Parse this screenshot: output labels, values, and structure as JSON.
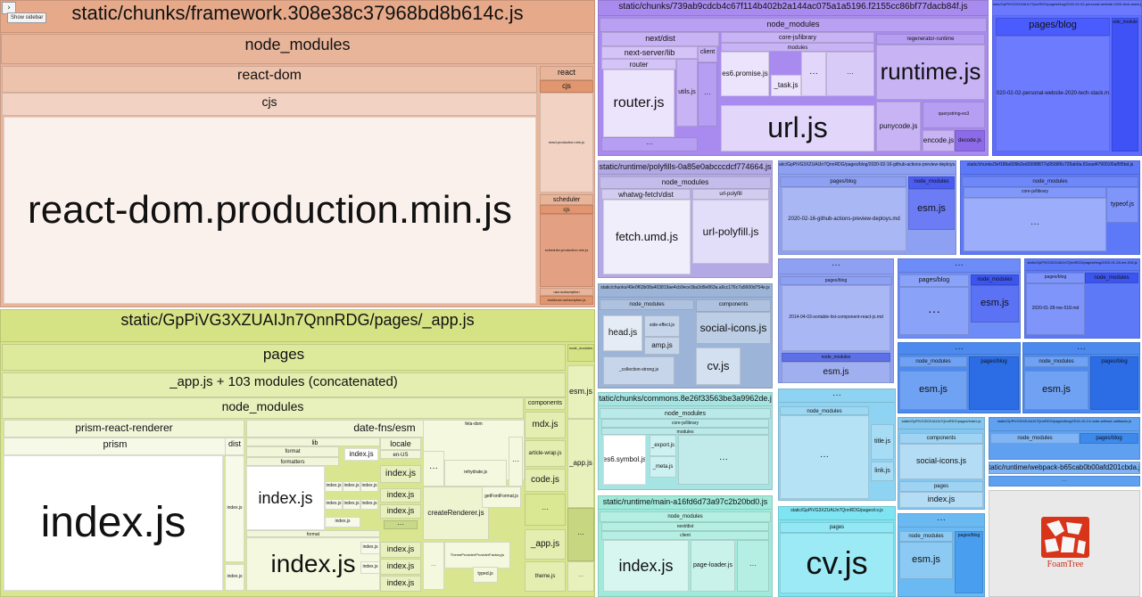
{
  "controls": {
    "toggle_icon": "›",
    "show_sidebar_label": "Show sidebar"
  },
  "logo": {
    "name": "FoamTree",
    "color": "#d8341a"
  },
  "groups": {
    "framework": {
      "title": "static/chunks/framework.308e38c37968bd8b614c.js",
      "node_modules": "node_modules",
      "react_dom": "react-dom",
      "cjs": "cjs",
      "react_dom_min": "react-dom.production.min.js",
      "react": "react",
      "react_cjs": "cjs",
      "react_min": "react.production.min.js",
      "scheduler": "scheduler",
      "scheduler_cjs": "cjs",
      "scheduler_min": "scheduler.production.min.js",
      "use_sub": "use-subscription",
      "build": "build/use-subscription.js"
    },
    "app": {
      "title": "static/GpPiVG3XZUAIJn7QnnRDG/pages/_app.js",
      "pages": "pages",
      "concat": "_app.js + 103 modules (concatenated)",
      "node_modules": "node_modules",
      "prism_react_renderer": "prism-react-renderer",
      "prism": "prism",
      "index_big": "index.js",
      "dist": "dist",
      "dist_index1": "index.js",
      "dist_index2": "index.js",
      "date_fns": "date-fns/esm",
      "lib": "_lib",
      "format": "format",
      "formatters": "formatters",
      "format_index": "index.js",
      "format2": "format",
      "index_large": "index.js",
      "index_small": "index.js",
      "locale": "locale",
      "en_us": "en-US",
      "locale_index": "index.js",
      "small_index": "index.js",
      "create_renderer": "createRenderer.js",
      "rehydrate": "rehydrate.js",
      "get_font_format": "getFontFormat.js",
      "theme_provider": "ThemeProvider/ProviderFactory.js",
      "typed": "typed.js",
      "components": "components",
      "mdx": "mdx.js",
      "article_wrap": "article-wrap.js",
      "code": "code.js",
      "app_js": "_app.js",
      "theme": "theme.js",
      "esm": "esm.js",
      "app_js2": "_app.js",
      "node_modules2": "node_modules",
      "font_blocks": "fela-dom",
      "ellipsis": "···"
    },
    "chunk739": {
      "title": "static/chunks/739ab9cdcb4c67f114b402b2a144ac075a1a5196.f2155cc86bf77dacb84f.js",
      "node_modules": "node_modules",
      "next_dist": "next/dist",
      "next_server_lib": "next-server/lib",
      "router": "router",
      "router_js": "router.js",
      "utils": "utils.js",
      "client": "client",
      "es6_promise": "es6.promise.js",
      "core_js_library": "core-js/library",
      "modules": "modules",
      "task": "_task.js",
      "runtime": "runtime.js",
      "regenerator": "regenerator-runtime",
      "url": "url.js",
      "punycode": "punycode.js",
      "encode": "encode.js",
      "decode": "decode.js",
      "querystring": "querystring-es3",
      "ellipsis": "···"
    },
    "blog2020": {
      "title": "static/GpPiVG3XZUAIJn7QnnRDG/pages/blog/2020-02-02-personal-website-2020-tech-stack.js",
      "pages_blog": "pages/blog",
      "md": "2020-02-02-personal-website-2020-tech-stack.md",
      "node_modules": "node_modules"
    },
    "polyfills": {
      "title": "static/runtime/polyfills-0a85e0abcccdcf774664.js",
      "node_modules": "node_modules",
      "whatwg": "whatwg-fetch/dist",
      "fetch": "fetch.umd.js",
      "url_polyfill_dir": "url-polyfill",
      "url_polyfill": "url-polyfill.js"
    },
    "gh_actions": {
      "title": "static/GpPiVG3XZUAIJn7QnnRDG/pages/blog/2020-02-16-github-actions-preview-deploys.js",
      "pages_blog": "pages/blog",
      "md": "2020-02-16-github-actions-preview-deploys.md",
      "node_modules": "node_modules",
      "esm": "esm.js"
    },
    "chunk3": {
      "title": "static/chunks/3ef189a609b2ed3998f877a9509f6c729ab9a.81ead479001f0af5f5bd.js",
      "node_modules": "node_modules",
      "core_js": "core-js/library",
      "typeof": "typeof.js",
      "ellipsis": "···"
    },
    "chunk4": {
      "title": "static/chunks/49e0f63b08a403819ae4cb9ece3ba3d9e863a.a6cc176c7a5600d754e.js",
      "node_modules": "node_modules",
      "head": "head.js",
      "amp": "amp.js",
      "side_effect": "side-effect.js",
      "components": "components",
      "social_icons": "social-icons.js",
      "cv": "cv.js",
      "collection_strong": "_collection-strong.js",
      "ellipsis": "···"
    },
    "sortable": {
      "title": "···",
      "pages_blog": "pages/blog",
      "md": "2014-04-03-sortable-list-component-react-js.md",
      "node_modules": "node_modules",
      "esm": "esm.js"
    },
    "blog_a": {
      "title": "···",
      "pages_blog": "pages/blog",
      "node_modules": "node_modules",
      "esm": "esm.js",
      "ellipsis": "···"
    },
    "blog_b": {
      "title": "static/GpPiVG3XZUAIJn7QnnRDG/pages/blog/2020-01-28-me-518.js",
      "pages_blog": "pages/blog",
      "md": "2020-01-28-me-518.md",
      "node_modules": "node_modules"
    },
    "blog_c": {
      "title": "···",
      "node_modules": "node_modules",
      "pages_blog": "pages/blog",
      "esm": "esm.js",
      "ellipsis": "···"
    },
    "blog_d": {
      "title": "···",
      "node_modules": "node_modules",
      "pages_blog": "pages/blog",
      "esm": "esm.js",
      "ellipsis": "···"
    },
    "commons": {
      "title": "static/chunks/commons.8e26f33563be3a9962de.js",
      "node_modules": "node_modules",
      "core_js": "core-js/library",
      "modules": "modules",
      "es6_symbol": "es6.symbol.js",
      "export": "_export.js",
      "meta": "_meta.js",
      "ellipsis": "···"
    },
    "cv_page": {
      "title": "···",
      "node_modules": "node_modules",
      "title_js": "title.js",
      "link": "link.js",
      "ellipsis": "···"
    },
    "social": {
      "title": "static/GpPiVG3XZUAIJn7QnnRDG/pages/index.js",
      "components": "components",
      "social_icons": "social-icons.js",
      "pages": "pages",
      "index": "index.js"
    },
    "no_arrow": {
      "title": "static/GpPiVG3XZUAIJn7QnnRDG/pages/blog/2015-10-14-node-without-callbacks.js",
      "node_modules": "node_modules",
      "pages_blog": "pages/blog"
    },
    "webpack": {
      "title": "static/runtime/webpack-b65cab0b00afd201cbda.js"
    },
    "main": {
      "title": "static/runtime/main-a16fd6d73a97c2b20bd0.js",
      "node_modules": "node_modules",
      "next_dist": "next/dist",
      "client": "client",
      "index": "index.js",
      "page_loader": "page-loader.js"
    },
    "cv": {
      "title": "static/GpPiVG3XZUAIJn7QnnRDG/pages/cv.js",
      "pages": "pages",
      "cv": "cv.js"
    },
    "blog_e": {
      "title": "···",
      "node_modules": "node_modules",
      "pages_blog": "pages/blog",
      "esm": "esm.js"
    }
  },
  "colors": {
    "framework_bg": "#e8b49a",
    "framework_dark": "#d98a62",
    "app_bg": "#d9e68f",
    "chunk_purple": "#a98bef",
    "blog_blue": "#5d6eff",
    "mid_blue": "#8ea0f2",
    "commons_teal": "#a6e4e3",
    "cyan": "#7fe4f2",
    "gray": "#e9e9e9"
  }
}
